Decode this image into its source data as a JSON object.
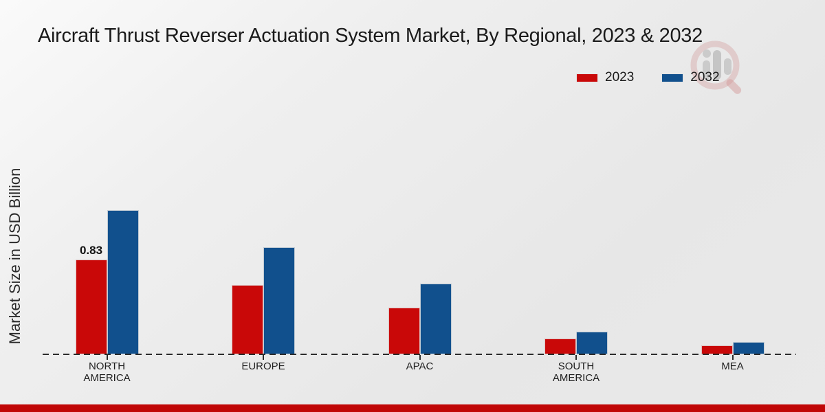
{
  "title": "Aircraft Thrust Reverser Actuation System Market, By Regional, 2023 & 2032",
  "y_axis_label": "Market Size in USD Billion",
  "legend": {
    "position": "top-right",
    "items": [
      {
        "label": "2023",
        "color": "#c90808"
      },
      {
        "label": "2032",
        "color": "#11508d"
      }
    ]
  },
  "colors": {
    "series_2023": "#c90808",
    "series_2032": "#11508d",
    "footer_strip": "#c00606",
    "axis": "#2b2b2b"
  },
  "watermark_icon": "magnifier-bar-chart-logo",
  "chart_data": {
    "type": "bar",
    "categories": [
      "NORTH AMERICA",
      "EUROPE",
      "APAC",
      "SOUTH AMERICA",
      "MEA"
    ],
    "series": [
      {
        "name": "2023",
        "color": "#c90808",
        "values": [
          0.83,
          0.61,
          0.41,
          0.14,
          0.08
        ]
      },
      {
        "name": "2032",
        "color": "#11508d",
        "values": [
          1.26,
          0.94,
          0.62,
          0.2,
          0.11
        ]
      }
    ],
    "annotations": [
      {
        "series": "2023",
        "category_index": 0,
        "text": "0.83"
      }
    ],
    "title": "Aircraft Thrust Reverser Actuation System Market, By Regional, 2023 & 2032",
    "xlabel": "",
    "ylabel": "Market Size in USD Billion",
    "ylim": [
      0,
      1.45
    ],
    "grid": false,
    "legend_position": "top-right",
    "x_axis_style": "dashed-baseline-only"
  }
}
